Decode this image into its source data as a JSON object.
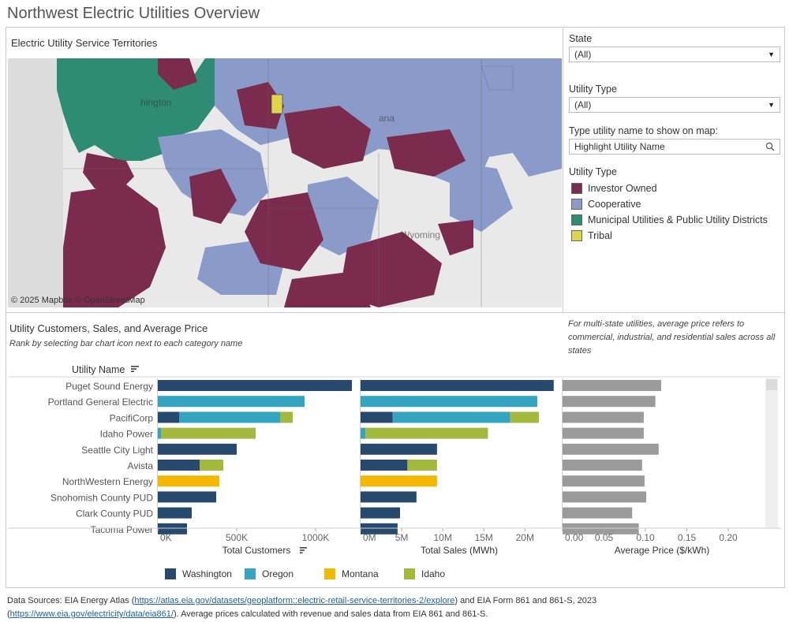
{
  "title": "Northwest Electric Utilities Overview",
  "map": {
    "title": "Electric Utility Service Territories",
    "credit": "© 2025 Mapbox  © OpenStreetMap",
    "place_labels": [
      "hington",
      "ana",
      "Wyoming"
    ]
  },
  "filters": {
    "state_label": "State",
    "state_value": "(All)",
    "type_label": "Utility Type",
    "type_value": "(All)",
    "search_label": "Type utility name to show on map:",
    "search_placeholder": "Highlight Utility Name"
  },
  "legend": {
    "title": "Utility Type",
    "items": [
      {
        "label": "Investor Owned",
        "color": "#7b2c4e"
      },
      {
        "label": "Cooperative",
        "color": "#8b9bc9"
      },
      {
        "label": "Municipal Utilities & Public Utility Districts",
        "color": "#2e8b74"
      },
      {
        "label": "Tribal",
        "color": "#e0d44a"
      }
    ]
  },
  "chart_section": {
    "title": "Utility Customers, Sales, and Average Price",
    "subtitle": "Rank by selecting bar chart icon next to each category name",
    "note": "For multi-state utilities, average price refers to commercial, industrial, and residential sales across all states",
    "utility_header": "Utility Name"
  },
  "chart_data": {
    "type": "bar",
    "categories": [
      "Puget Sound Energy",
      "Portland General Electric",
      "PacifiCorp",
      "Idaho Power",
      "Seattle City Light",
      "Avista",
      "NorthWestern Energy",
      "Snohomish County PUD",
      "Clark County PUD",
      "Tacoma Power"
    ],
    "state_colors": {
      "Washington": "#27496d",
      "Oregon": "#35a4c1",
      "Montana": "#f5b800",
      "Idaho": "#a3b93c"
    },
    "legend": [
      "Washington",
      "Oregon",
      "Montana",
      "Idaho"
    ],
    "customers": {
      "xlabel": "Total Customers",
      "xlim": [
        0,
        1250000
      ],
      "ticks": [
        "0K",
        "500K",
        "1000K"
      ],
      "tick_values": [
        0,
        500000,
        1000000
      ],
      "series": [
        {
          "name": "Washington",
          "values": [
            1230000,
            0,
            135000,
            0,
            500000,
            265000,
            0,
            370000,
            215000,
            185000
          ]
        },
        {
          "name": "Oregon",
          "values": [
            0,
            930000,
            640000,
            20000,
            0,
            0,
            0,
            0,
            0,
            0
          ]
        },
        {
          "name": "Montana",
          "values": [
            0,
            0,
            0,
            0,
            0,
            0,
            390000,
            0,
            0,
            0
          ]
        },
        {
          "name": "Idaho",
          "values": [
            0,
            0,
            80000,
            600000,
            0,
            150000,
            0,
            0,
            0,
            0
          ]
        }
      ]
    },
    "sales": {
      "xlabel": "Total Sales (MWh)",
      "xlim": [
        0,
        24000000
      ],
      "ticks": [
        "0M",
        "5M",
        "10M",
        "15M",
        "20M"
      ],
      "tick_values": [
        0,
        5000000,
        10000000,
        15000000,
        20000000
      ],
      "series": [
        {
          "name": "Washington",
          "values": [
            23500000,
            0,
            3900000,
            0,
            9300000,
            5700000,
            0,
            6800000,
            4800000,
            4500000
          ]
        },
        {
          "name": "Oregon",
          "values": [
            0,
            21500000,
            14300000,
            600000,
            0,
            0,
            0,
            0,
            0,
            0
          ]
        },
        {
          "name": "Montana",
          "values": [
            0,
            0,
            0,
            0,
            0,
            0,
            9300000,
            0,
            0,
            0
          ]
        },
        {
          "name": "Idaho",
          "values": [
            0,
            0,
            3500000,
            14900000,
            0,
            3600000,
            0,
            0,
            0,
            0
          ]
        }
      ]
    },
    "price": {
      "xlabel": "Average Price ($/kWh)",
      "xlim": [
        0,
        0.24
      ],
      "ticks": [
        "0.00",
        "0.05",
        "0.10",
        "0.15",
        "0.20"
      ],
      "tick_values": [
        0,
        0.05,
        0.1,
        0.15,
        0.2
      ],
      "color": "#9b9b9b",
      "values": [
        0.119,
        0.112,
        0.098,
        0.098,
        0.116,
        0.096,
        0.099,
        0.101,
        0.084,
        0.092
      ]
    }
  },
  "footer": {
    "p1": "Data Sources: EIA Energy Atlas (",
    "link1": "https://atlas.eia.gov/datasets/geoplatform::electric-retail-service-territories-2/explore",
    "p2": ") and EIA Form 861 and 861-S, 2023",
    "p3": "(",
    "link2": "https://www.eia.gov/electricity/data/eia861/",
    "p4": "). Average prices calculated with revenue and sales data from EIA 861 and 861-S."
  }
}
